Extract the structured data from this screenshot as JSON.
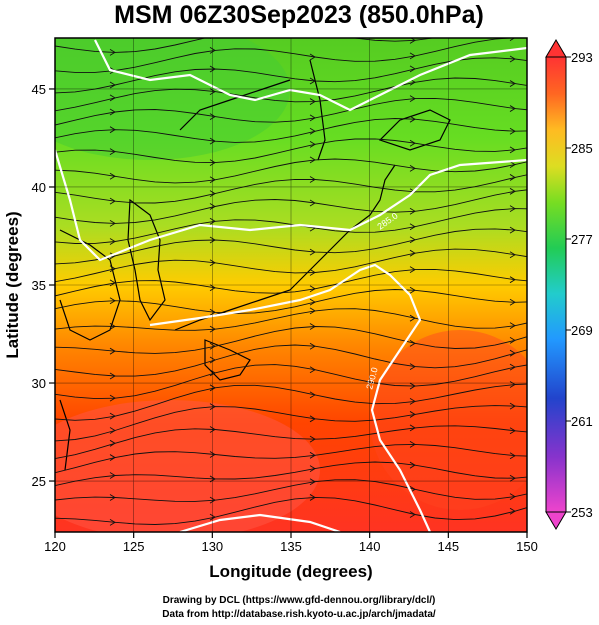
{
  "chart_data": {
    "type": "heatmap",
    "title": "MSM 06Z30Sep2023 (850.0hPa)",
    "xlabel": "Longitude (degrees)",
    "ylabel": "Latitude  (degrees)",
    "xlim": [
      120,
      150
    ],
    "ylim": [
      22.4,
      47.6
    ],
    "x_ticks": [
      "120",
      "125",
      "130",
      "135",
      "140",
      "145",
      "150"
    ],
    "y_ticks": [
      "25",
      "30",
      "35",
      "40",
      "45"
    ],
    "colorbar": {
      "min": 253,
      "max": 293,
      "tick_labels": [
        "293",
        "285",
        "277",
        "269",
        "261",
        "253"
      ],
      "colors": [
        "#cc33cc",
        "#3333cc",
        "#3399ff",
        "#33cccc",
        "#33cc66",
        "#66cc33",
        "#cccc33",
        "#ffcc33",
        "#ff6633",
        "#ff3333"
      ]
    },
    "field": "temperature (K) with streamlines",
    "contours": [
      {
        "value": 280.0,
        "label": "280.0"
      },
      {
        "value": 285.0,
        "label": "285.0"
      },
      {
        "value": 290.0,
        "label": "290.0"
      }
    ],
    "grid": true
  },
  "credits": {
    "line1": "Drawing by DCL (https://www.gfd-dennou.org/library/dcl/)",
    "line2": "Data from http://database.rish.kyoto-u.ac.jp/arch/jmadata/"
  }
}
